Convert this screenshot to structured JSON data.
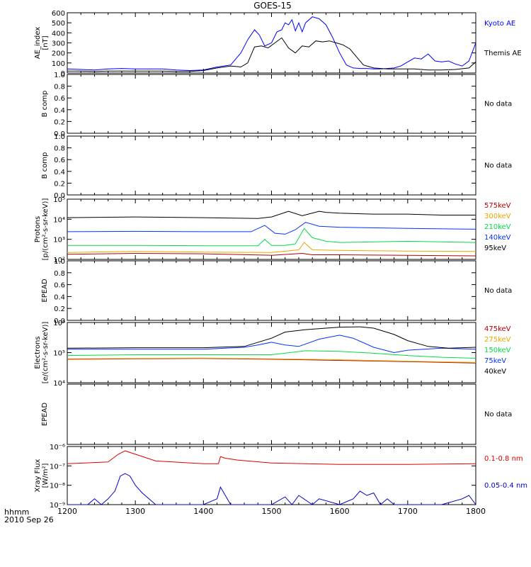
{
  "title": "GOES-15",
  "footer": {
    "line1": "hhmm",
    "line2": "2010 Sep 26"
  },
  "xaxis": {
    "ticks": [
      "1200",
      "1300",
      "1400",
      "1500",
      "1600",
      "1700",
      "1800"
    ],
    "range": [
      1200,
      1800
    ]
  },
  "chart_data": [
    {
      "id": "ae",
      "type": "line",
      "ylabel": [
        "AE_index",
        "[nT]"
      ],
      "yticks": [
        "0",
        "100",
        "200",
        "300",
        "400",
        "500",
        "600"
      ],
      "ylim": [
        0,
        600
      ],
      "series": [
        {
          "name": "Kyoto AE",
          "color": "#0000ff",
          "x": [
            1200,
            1220,
            1240,
            1260,
            1280,
            1300,
            1320,
            1340,
            1360,
            1380,
            1400,
            1420,
            1440,
            1455,
            1465,
            1475,
            1482,
            1490,
            1500,
            1508,
            1515,
            1520,
            1525,
            1530,
            1535,
            1540,
            1545,
            1550,
            1560,
            1570,
            1580,
            1590,
            1600,
            1610,
            1620,
            1630,
            1640,
            1650,
            1660,
            1670,
            1680,
            1690,
            1700,
            1710,
            1720,
            1730,
            1740,
            1750,
            1760,
            1770,
            1780,
            1790,
            1800
          ],
          "y": [
            40,
            35,
            30,
            40,
            45,
            40,
            40,
            40,
            30,
            25,
            30,
            60,
            80,
            200,
            330,
            430,
            380,
            270,
            300,
            410,
            430,
            500,
            480,
            530,
            420,
            500,
            410,
            500,
            560,
            540,
            480,
            350,
            200,
            80,
            50,
            45,
            45,
            40,
            40,
            45,
            50,
            70,
            110,
            150,
            140,
            190,
            120,
            110,
            120,
            90,
            70,
            120,
            300
          ]
        },
        {
          "name": "Themis AE",
          "color": "#000000",
          "x": [
            1200,
            1220,
            1240,
            1260,
            1280,
            1300,
            1320,
            1340,
            1360,
            1380,
            1400,
            1420,
            1440,
            1455,
            1465,
            1475,
            1485,
            1495,
            1505,
            1515,
            1525,
            1535,
            1545,
            1555,
            1565,
            1575,
            1585,
            1595,
            1605,
            1615,
            1625,
            1635,
            1650,
            1670,
            1690,
            1710,
            1730,
            1750,
            1770,
            1790,
            1800
          ],
          "y": [
            20,
            20,
            15,
            20,
            20,
            20,
            20,
            20,
            15,
            15,
            25,
            50,
            70,
            60,
            100,
            260,
            270,
            250,
            300,
            350,
            250,
            200,
            270,
            260,
            320,
            310,
            320,
            300,
            280,
            240,
            160,
            80,
            50,
            40,
            40,
            40,
            30,
            30,
            35,
            50,
            110
          ]
        }
      ]
    },
    {
      "id": "bcomp1",
      "type": "line",
      "ylabel": [
        "B comp"
      ],
      "yticks": [
        "0.0",
        "0.2",
        "0.4",
        "0.6",
        "0.8",
        "1.0"
      ],
      "ylim": [
        0,
        1
      ],
      "status": "No data",
      "series": []
    },
    {
      "id": "bcomp2",
      "type": "line",
      "ylabel": [
        "B comp"
      ],
      "yticks": [
        "0.0",
        "0.2",
        "0.4",
        "0.6",
        "0.8",
        "1.0"
      ],
      "ylim": [
        0,
        1
      ],
      "status": "No data",
      "series": []
    },
    {
      "id": "protons",
      "type": "line",
      "log": true,
      "ylabel": [
        "Protons",
        "[p/(cm²-s-sr-keV)]"
      ],
      "yticks": [
        "10²",
        "10³",
        "10⁴",
        "10⁵"
      ],
      "ylim": [
        100,
        100000
      ],
      "series": [
        {
          "name": "575keV",
          "color": "#b40000",
          "x": [
            1200,
            1300,
            1400,
            1500,
            1545,
            1560,
            1600,
            1700,
            1800
          ],
          "y": [
            180,
            200,
            190,
            160,
            200,
            170,
            170,
            160,
            150
          ]
        },
        {
          "name": "300keV",
          "color": "#e6a800",
          "x": [
            1200,
            1300,
            1400,
            1500,
            1540,
            1548,
            1560,
            1600,
            1700,
            1800
          ],
          "y": [
            220,
            250,
            230,
            220,
            300,
            700,
            300,
            280,
            260,
            250
          ]
        },
        {
          "name": "210keV",
          "color": "#00dd44",
          "x": [
            1200,
            1300,
            1400,
            1480,
            1490,
            1500,
            1520,
            1535,
            1548,
            1560,
            1580,
            1600,
            1700,
            1800
          ],
          "y": [
            500,
            500,
            480,
            480,
            1000,
            500,
            500,
            600,
            3500,
            1200,
            800,
            700,
            800,
            700
          ]
        },
        {
          "name": "140keV",
          "color": "#0033ff",
          "x": [
            1200,
            1300,
            1400,
            1470,
            1490,
            1505,
            1520,
            1535,
            1550,
            1570,
            1600,
            1700,
            1800
          ],
          "y": [
            2400,
            2500,
            2400,
            2400,
            5000,
            2000,
            1800,
            3000,
            7000,
            4500,
            4000,
            3500,
            3200
          ]
        },
        {
          "name": "95keV",
          "color": "#000000",
          "x": [
            1200,
            1300,
            1400,
            1480,
            1500,
            1525,
            1545,
            1570,
            1580,
            1600,
            1650,
            1700,
            1750,
            1800
          ],
          "y": [
            12000,
            13000,
            12000,
            11000,
            13000,
            25000,
            15000,
            25000,
            22000,
            20000,
            18000,
            18000,
            16000,
            16000
          ]
        }
      ]
    },
    {
      "id": "epead1",
      "type": "line",
      "ylabel": [
        "EPEAD"
      ],
      "yticks": [
        "0.0",
        "0.2",
        "0.4",
        "0.6",
        "0.8",
        "1.0"
      ],
      "ylim": [
        0,
        1
      ],
      "status": "No data",
      "series": []
    },
    {
      "id": "electrons",
      "type": "line",
      "log": true,
      "ylabel": [
        "Electrons",
        "[e/(cm²-s-sr-keV)]"
      ],
      "yticks": [
        "10⁴",
        "10⁵",
        "10⁶"
      ],
      "ylim": [
        10000,
        1000000
      ],
      "series": [
        {
          "name": "475keV",
          "color": "#b40000",
          "x": [
            1200,
            1300,
            1400,
            1500,
            1600,
            1700,
            1800
          ],
          "y": [
            60000,
            62000,
            64000,
            60000,
            55000,
            50000,
            45000
          ]
        },
        {
          "name": "275keV",
          "color": "#e6a800",
          "x": [
            1200,
            1300,
            1400,
            1500,
            1600,
            1700,
            1800
          ],
          "y": [
            62000,
            64000,
            66000,
            62000,
            58000,
            52000,
            47000
          ]
        },
        {
          "name": "150keV",
          "color": "#00dd44",
          "x": [
            1200,
            1300,
            1400,
            1500,
            1550,
            1600,
            1650,
            1700,
            1750,
            1800
          ],
          "y": [
            80000,
            85000,
            85000,
            85000,
            115000,
            110000,
            95000,
            80000,
            70000,
            65000
          ]
        },
        {
          "name": "75keV",
          "color": "#0033ff",
          "x": [
            1200,
            1300,
            1400,
            1460,
            1480,
            1500,
            1520,
            1540,
            1570,
            1600,
            1620,
            1650,
            1680,
            1700,
            1750,
            1800
          ],
          "y": [
            130000,
            130000,
            130000,
            150000,
            180000,
            220000,
            180000,
            160000,
            280000,
            380000,
            300000,
            150000,
            100000,
            120000,
            140000,
            130000
          ]
        },
        {
          "name": "40keV",
          "color": "#000000",
          "x": [
            1200,
            1300,
            1400,
            1460,
            1500,
            1520,
            1550,
            1580,
            1600,
            1630,
            1650,
            1680,
            1700,
            1730,
            1760,
            1800
          ],
          "y": [
            140000,
            145000,
            145000,
            160000,
            300000,
            480000,
            580000,
            650000,
            700000,
            720000,
            650000,
            400000,
            250000,
            160000,
            140000,
            150000
          ]
        }
      ]
    },
    {
      "id": "epead2",
      "type": "line",
      "ylabel": [
        "EPEAD"
      ],
      "yticks": [],
      "ylim": [
        0,
        1
      ],
      "status": "No data",
      "series": []
    },
    {
      "id": "xray",
      "type": "line",
      "log": true,
      "ylabel": [
        "Xray Flux",
        "[W/m²]"
      ],
      "yticks": [
        "10⁻⁹",
        "10⁻⁸",
        "10⁻⁷",
        "10⁻⁶"
      ],
      "ylim": [
        1e-09,
        1e-06
      ],
      "series": [
        {
          "name": "0.1-0.8 nm",
          "color": "#dd0000",
          "x": [
            1200,
            1260,
            1275,
            1285,
            1300,
            1330,
            1400,
            1422,
            1425,
            1432,
            1450,
            1500,
            1600,
            1700,
            1800
          ],
          "y": [
            1.3e-07,
            1.6e-07,
            4e-07,
            6e-07,
            4e-07,
            1.8e-07,
            1.3e-07,
            1.3e-07,
            3e-07,
            2.5e-07,
            2e-07,
            1.4e-07,
            1.2e-07,
            1.2e-07,
            1.3e-07
          ]
        },
        {
          "name": "0.05-0.4 nm",
          "color": "#0000cc",
          "x": [
            1200,
            1230,
            1240,
            1250,
            1260,
            1270,
            1278,
            1285,
            1292,
            1300,
            1310,
            1320,
            1330,
            1400,
            1420,
            1425,
            1430,
            1440,
            1500,
            1520,
            1530,
            1540,
            1560,
            1570,
            1600,
            1620,
            1630,
            1640,
            1650,
            1660,
            1670,
            1680,
            1700,
            1750,
            1780,
            1790,
            1800
          ],
          "y": [
            1e-09,
            1e-09,
            2e-09,
            1e-09,
            2e-09,
            5e-09,
            3e-08,
            4e-08,
            3e-08,
            1e-08,
            4e-09,
            2e-09,
            1e-09,
            1e-09,
            2e-09,
            8e-09,
            4e-09,
            1e-09,
            1e-09,
            2.5e-09,
            1e-09,
            3e-09,
            1e-09,
            2e-09,
            1e-09,
            2e-09,
            5e-09,
            3e-09,
            4e-09,
            1e-09,
            2e-09,
            1e-09,
            1e-09,
            1e-09,
            2e-09,
            3e-09,
            1e-09
          ]
        }
      ]
    }
  ]
}
